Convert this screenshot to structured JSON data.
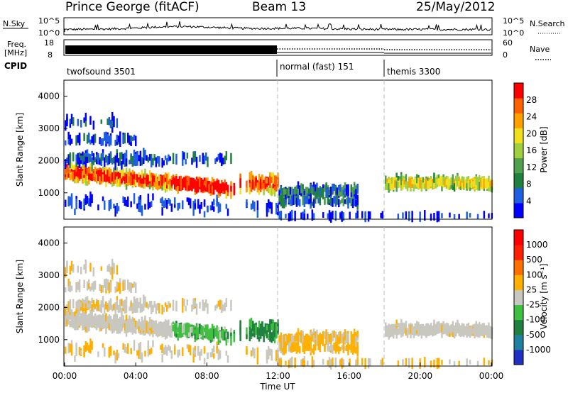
{
  "header": {
    "station": "Prince George (fitACF)",
    "beam": "Beam 13",
    "date": "25/May/2012"
  },
  "panels": {
    "nsky_label": "N.Sky",
    "nsearch_label": "N.Search",
    "nsky_ticks": [
      "10^5",
      "10^0"
    ],
    "nsearch_ticks": [
      "10^5",
      "10^0"
    ],
    "freq_label_1": "Freq.",
    "freq_label_2": "[MHz]",
    "freq_ticks": [
      "18",
      "8"
    ],
    "nave_label": "Nave",
    "nave_ticks": [
      "60",
      "0"
    ],
    "cpid_label": "CPID",
    "modes": [
      {
        "name": "twofsound 3501",
        "start_hour": 0
      },
      {
        "name": "normal (fast) 151",
        "start_hour": 12
      },
      {
        "name": "themis 3300",
        "start_hour": 18
      }
    ]
  },
  "chart_data": [
    {
      "type": "heatmap",
      "name": "power",
      "xlabel": "",
      "ylabel": "Slant Range [km]",
      "x_range_hours": [
        0,
        24
      ],
      "ylim": [
        180,
        4500
      ],
      "yticks": [
        "4000",
        "3000",
        "2000",
        "1000"
      ],
      "colorbar": {
        "label": "Power [dB]",
        "ticks": [
          "28",
          "24",
          "20",
          "16",
          "12",
          "8",
          "4"
        ],
        "colors": [
          "#0000ff",
          "#2060e0",
          "#208040",
          "#50a050",
          "#a0d040",
          "#f0e020",
          "#ffa000",
          "#ff6000",
          "#ff0000"
        ]
      }
    },
    {
      "type": "heatmap",
      "name": "velocity",
      "xlabel": "Time UT",
      "ylabel": "Slant Range [km]",
      "x_range_hours": [
        0,
        24
      ],
      "ylim": [
        180,
        4500
      ],
      "xticks": [
        "00:00",
        "04:00",
        "08:00",
        "12:00",
        "16:00",
        "20:00",
        "00:00"
      ],
      "yticks": [
        "4000",
        "3000",
        "2000",
        "1000"
      ],
      "colorbar": {
        "label": "Velocity [m s⁻¹]",
        "ticks": [
          "1000",
          "500",
          "100",
          "25",
          "-25",
          "-100",
          "-500",
          "-1000"
        ],
        "colors": [
          "#2030c0",
          "#2080a0",
          "#208040",
          "#40c040",
          "#c8c8c0",
          "#ffb000",
          "#ff7000",
          "#ff2000",
          "#ff0000"
        ]
      }
    }
  ]
}
